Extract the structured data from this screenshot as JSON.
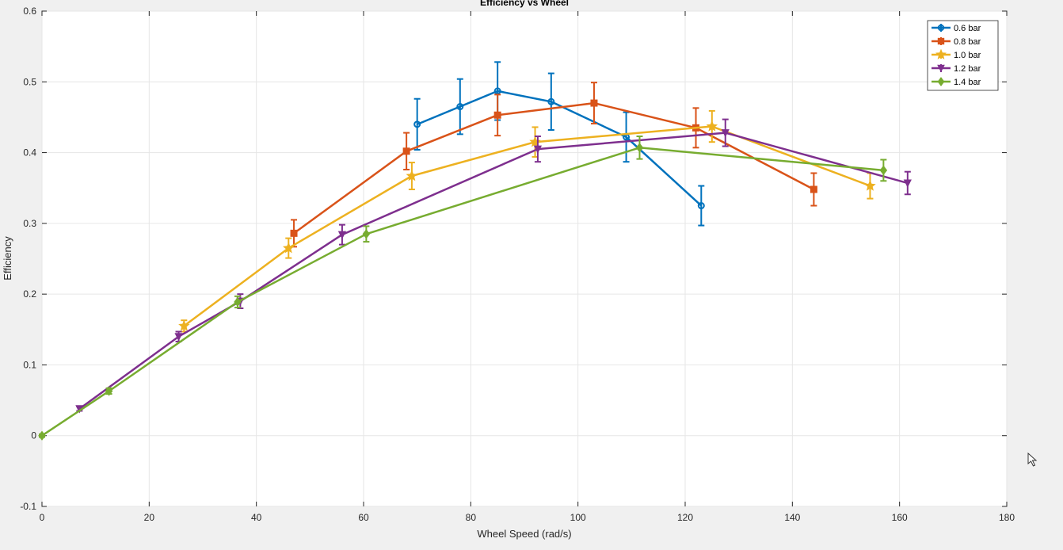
{
  "chart_data": {
    "type": "line",
    "title": "Efficiency vs Wheel",
    "xlabel": "Wheel Speed (rad/s)",
    "ylabel": "Efficiency",
    "xlim": [
      0,
      180
    ],
    "ylim": [
      -0.1,
      0.6
    ],
    "xticks": [
      0,
      20,
      40,
      60,
      80,
      100,
      120,
      140,
      160,
      180
    ],
    "yticks": [
      -0.1,
      0,
      0.1,
      0.2,
      0.3,
      0.4,
      0.5,
      0.6
    ],
    "xtick_labels": [
      "0",
      "20",
      "40",
      "60",
      "80",
      "100",
      "120",
      "140",
      "160",
      "180"
    ],
    "ytick_labels": [
      "-0.1",
      "0",
      "0.1",
      "0.2",
      "0.3",
      "0.4",
      "0.5",
      "0.6"
    ],
    "grid": true,
    "legend_position": "top-right",
    "series": [
      {
        "name": "0.6 bar",
        "color": "#0072bd",
        "marker": "circle",
        "x": [
          70,
          78,
          85,
          95,
          109,
          123
        ],
        "y": [
          0.44,
          0.465,
          0.487,
          0.472,
          0.422,
          0.325
        ],
        "err": [
          0.036,
          0.039,
          0.041,
          0.04,
          0.035,
          0.028
        ]
      },
      {
        "name": "0.8 bar",
        "color": "#d95319",
        "marker": "square",
        "x": [
          47,
          68,
          85,
          103,
          122,
          144
        ],
        "y": [
          0.286,
          0.402,
          0.453,
          0.47,
          0.435,
          0.348
        ],
        "err": [
          0.019,
          0.026,
          0.029,
          0.029,
          0.028,
          0.023
        ]
      },
      {
        "name": "1.0 bar",
        "color": "#edb120",
        "marker": "star",
        "x": [
          26.5,
          46,
          69,
          92,
          125,
          154.5
        ],
        "y": [
          0.155,
          0.265,
          0.367,
          0.415,
          0.437,
          0.353
        ],
        "err": [
          0.008,
          0.014,
          0.019,
          0.021,
          0.022,
          0.018
        ]
      },
      {
        "name": "1.2 bar",
        "color": "#7e2f8e",
        "marker": "triangle-down",
        "x": [
          7,
          25.5,
          37,
          56,
          92.5,
          127.5,
          161.5
        ],
        "y": [
          0.038,
          0.14,
          0.19,
          0.284,
          0.405,
          0.428,
          0.357
        ],
        "err": [
          0.003,
          0.007,
          0.01,
          0.014,
          0.018,
          0.019,
          0.016
        ]
      },
      {
        "name": "1.4 bar",
        "color": "#77ac30",
        "marker": "diamond",
        "x": [
          0,
          12.5,
          36.5,
          60.5,
          111.5,
          157
        ],
        "y": [
          0,
          0.063,
          0.189,
          0.285,
          0.407,
          0.375
        ],
        "err": [
          0.002,
          0.004,
          0.008,
          0.011,
          0.016,
          0.015
        ]
      }
    ]
  }
}
